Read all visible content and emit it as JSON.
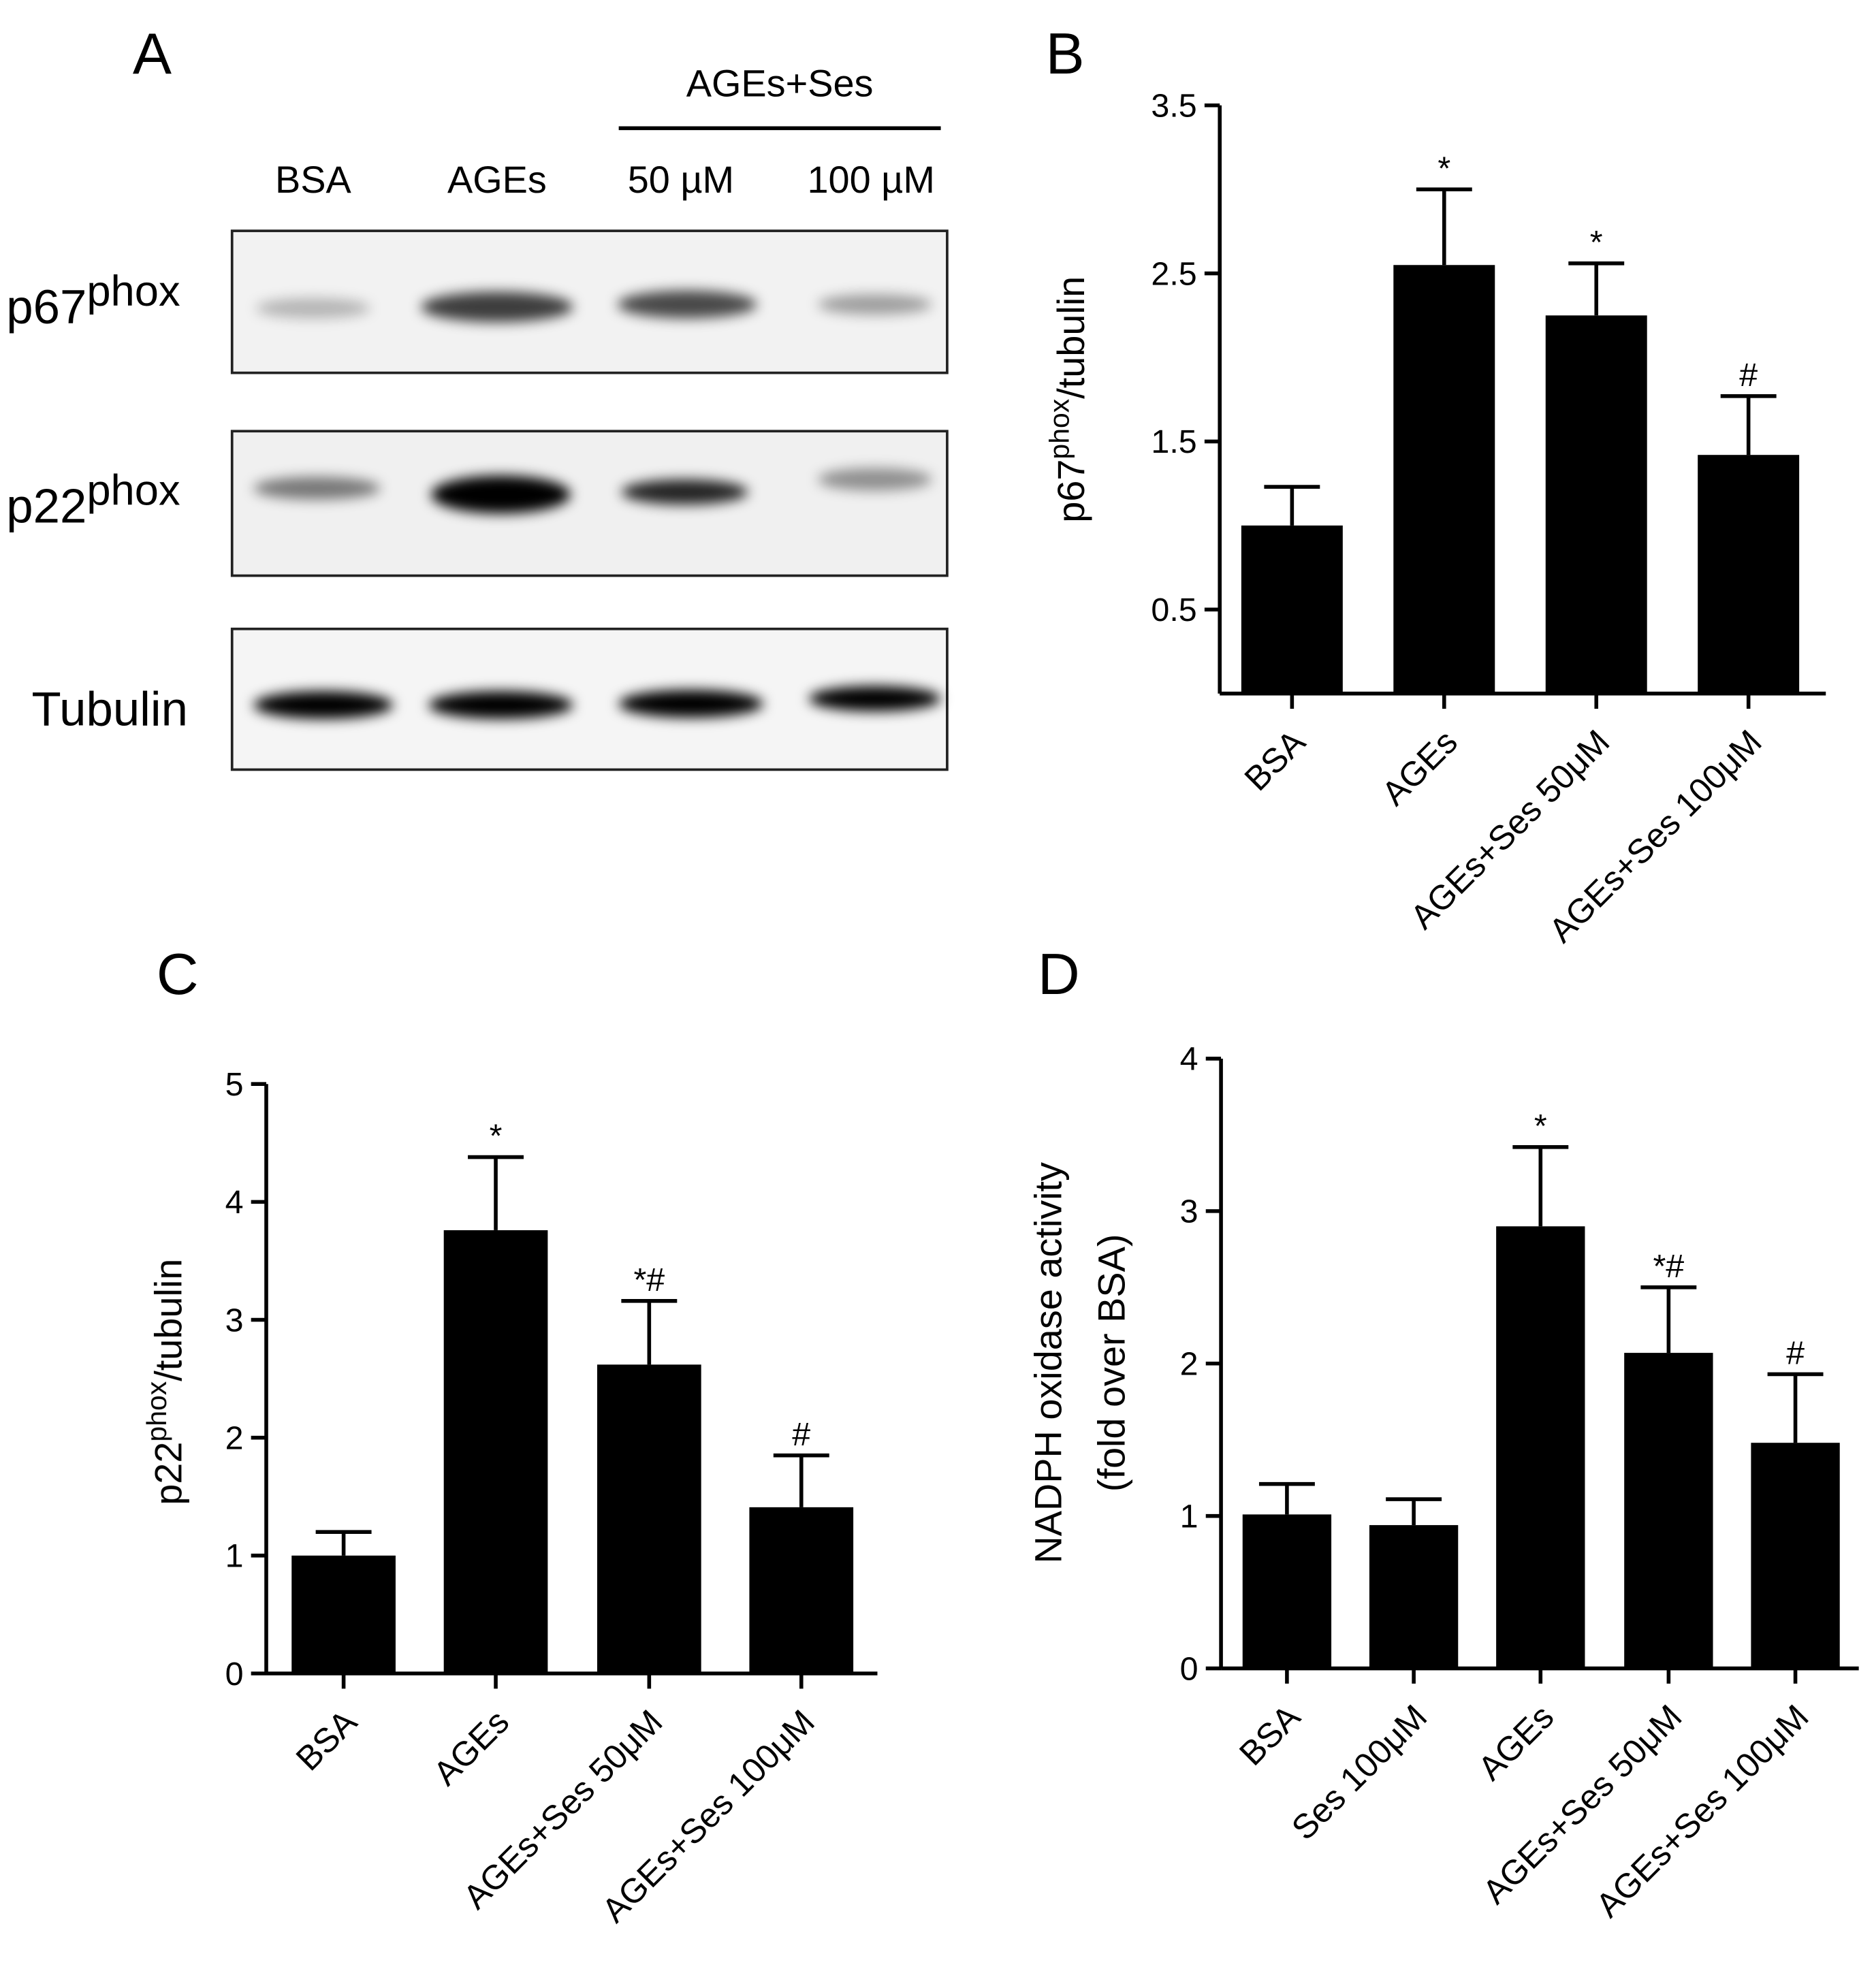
{
  "blot": {
    "panel_label": "A",
    "group_label": "AGEs+Ses",
    "lanes": [
      "BSA",
      "AGEs",
      "50 µM",
      "100 µM"
    ],
    "rows": [
      {
        "base": "p67",
        "sup": "phox"
      },
      {
        "base": "p22",
        "sup": "phox"
      },
      {
        "base": "Tubulin"
      }
    ]
  },
  "chart_data": [
    {
      "type": "bar",
      "panel_label": "B",
      "ylabel": {
        "base": "p67",
        "sup": "phox",
        "rest": "/tubulin"
      },
      "categories": [
        "BSA",
        "AGEs",
        "AGEs+Ses 50μM",
        "AGEs+Ses 100μM"
      ],
      "values": [
        1.0,
        2.55,
        2.25,
        1.42
      ],
      "errors": [
        0.23,
        0.45,
        0.31,
        0.35
      ],
      "annotations": [
        null,
        "*",
        "*",
        "#"
      ],
      "color": "#000000",
      "ylim": [
        0,
        3.5
      ],
      "yticks": [
        0.5,
        1.5,
        2.5,
        3.5
      ]
    },
    {
      "type": "bar",
      "panel_label": "C",
      "ylabel": {
        "base": "p22",
        "sup": "phox",
        "rest": "/tubulin"
      },
      "categories": [
        "BSA",
        "AGEs",
        "AGEs+Ses 50μM",
        "AGEs+Ses 100μM"
      ],
      "values": [
        1.0,
        3.76,
        2.62,
        1.41
      ],
      "errors": [
        0.2,
        0.62,
        0.54,
        0.44
      ],
      "annotations": [
        null,
        "*",
        "*#",
        "#"
      ],
      "color": "#000000",
      "ylim": [
        0,
        5
      ],
      "yticks": [
        0,
        1,
        2,
        3,
        4,
        5
      ]
    },
    {
      "type": "bar",
      "panel_label": "D",
      "ylabel_lines": [
        "NADPH oxidase activity",
        "(fold over BSA)"
      ],
      "categories": [
        "BSA",
        "Ses 100μM",
        "AGEs",
        "AGEs+Ses 50μM",
        "AGEs+Ses 100μM"
      ],
      "values": [
        1.01,
        0.94,
        2.9,
        2.07,
        1.48
      ],
      "errors": [
        0.2,
        0.17,
        0.52,
        0.43,
        0.45
      ],
      "annotations": [
        null,
        null,
        "*",
        "*#",
        "#"
      ],
      "color": "#000000",
      "ylim": [
        0,
        4
      ],
      "yticks": [
        0,
        1,
        2,
        3,
        4
      ]
    }
  ]
}
